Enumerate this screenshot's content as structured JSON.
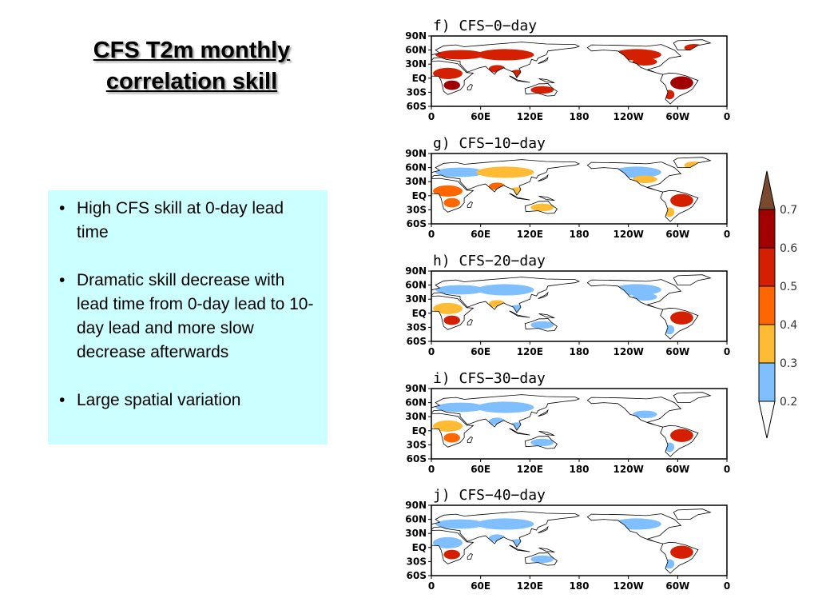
{
  "slide": {
    "title_line1": "CFS T2m monthly",
    "title_line2": "correlation skill",
    "bullets": [
      "High CFS skill at 0-day lead time",
      "Dramatic skill decrease with lead time from 0-day lead to 10-day lead and more slow decrease afterwards",
      "Large spatial variation"
    ],
    "bullet_symbol": "•"
  },
  "maps": {
    "panels": [
      {
        "label": "f)  CFS−0−day"
      },
      {
        "label": "g)  CFS−10−day"
      },
      {
        "label": "h)  CFS−20−day"
      },
      {
        "label": "i)  CFS−30−day"
      },
      {
        "label": "j)  CFS−40−day"
      }
    ],
    "lat_ticks": [
      "90N",
      "60N",
      "30N",
      "EQ",
      "30S",
      "60S"
    ],
    "lon_ticks": [
      "0",
      "60E",
      "120E",
      "180",
      "120W",
      "60W",
      "0"
    ]
  },
  "colorbar": {
    "levels": [
      "0.7",
      "0.6",
      "0.5",
      "0.4",
      "0.3",
      "0.2"
    ],
    "colors": [
      "#7a4a30",
      "#a00000",
      "#d42000",
      "#ff6600",
      "#ffbb33",
      "#7fbfff",
      "#ffffff"
    ]
  }
}
